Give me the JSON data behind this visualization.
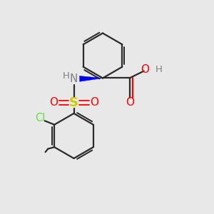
{
  "background_color": "#e8e8e8",
  "bond_color": "#2a2a2a",
  "atom_colors": {
    "N": "#808080",
    "S": "#cccc00",
    "O": "#ff0000",
    "Cl": "#66dd44",
    "H": "#808080",
    "C": "#2a2a2a"
  },
  "figsize": [
    3.0,
    3.0
  ],
  "dpi": 100
}
